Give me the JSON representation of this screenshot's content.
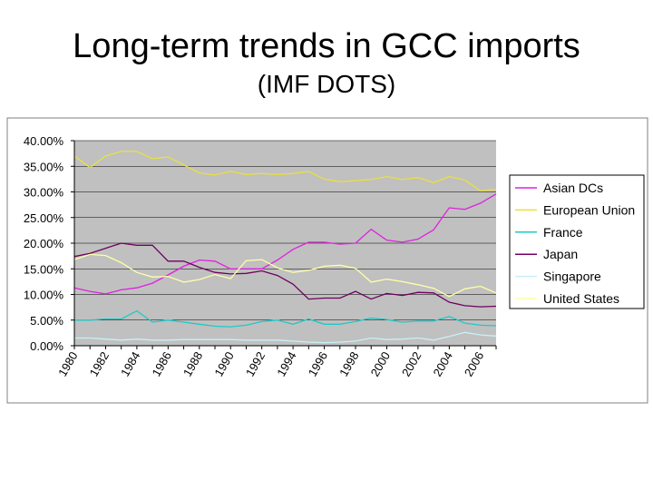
{
  "slide": {
    "title": "Long-term trends in GCC imports",
    "subtitle": "(IMF DOTS)"
  },
  "chart_data": {
    "type": "line",
    "title": "Long-term trends in GCC imports",
    "xlabel": "",
    "ylabel": "",
    "ylim": [
      0,
      0.4
    ],
    "y_ticks": [
      0,
      0.05,
      0.1,
      0.15,
      0.2,
      0.25,
      0.3,
      0.35,
      0.4
    ],
    "y_tick_labels": [
      "0.00%",
      "5.00%",
      "10.00%",
      "15.00%",
      "20.00%",
      "25.00%",
      "30.00%",
      "35.00%",
      "40.00%"
    ],
    "x": [
      1980,
      1981,
      1982,
      1983,
      1984,
      1985,
      1986,
      1987,
      1988,
      1989,
      1990,
      1991,
      1992,
      1993,
      1994,
      1995,
      1996,
      1997,
      1998,
      1999,
      2000,
      2001,
      2002,
      2003,
      2004,
      2005,
      2006,
      2007
    ],
    "x_tick_labels": [
      "1980",
      "1982",
      "1984",
      "1986",
      "1988",
      "1990",
      "1992",
      "1994",
      "1996",
      "1998",
      "2000",
      "2002",
      "2004",
      "2006"
    ],
    "x_tick_years": [
      1980,
      1982,
      1984,
      1986,
      1988,
      1990,
      1992,
      1994,
      1996,
      1998,
      2000,
      2002,
      2004,
      2006
    ],
    "plot_background": "#c0c0c0",
    "grid": true,
    "legend_position": "right",
    "series": [
      {
        "name": "Asian DCs",
        "color": "#e020e0",
        "values": [
          0.113,
          0.106,
          0.101,
          0.109,
          0.113,
          0.122,
          0.138,
          0.155,
          0.167,
          0.165,
          0.15,
          0.15,
          0.15,
          0.167,
          0.188,
          0.202,
          0.202,
          0.198,
          0.2,
          0.227,
          0.206,
          0.202,
          0.208,
          0.226,
          0.269,
          0.266,
          0.278,
          0.296
        ]
      },
      {
        "name": "European Union",
        "color": "#e8e040",
        "values": [
          0.37,
          0.348,
          0.37,
          0.379,
          0.379,
          0.365,
          0.368,
          0.353,
          0.337,
          0.333,
          0.34,
          0.334,
          0.336,
          0.334,
          0.336,
          0.34,
          0.325,
          0.32,
          0.322,
          0.324,
          0.33,
          0.324,
          0.328,
          0.318,
          0.33,
          0.323,
          0.302,
          0.305
        ]
      },
      {
        "name": "France",
        "color": "#20c8c8",
        "values": [
          0.05,
          0.05,
          0.052,
          0.052,
          0.068,
          0.046,
          0.05,
          0.046,
          0.042,
          0.038,
          0.037,
          0.04,
          0.047,
          0.05,
          0.042,
          0.052,
          0.042,
          0.042,
          0.047,
          0.054,
          0.051,
          0.046,
          0.048,
          0.048,
          0.057,
          0.044,
          0.04,
          0.039
        ]
      },
      {
        "name": "Japan",
        "color": "#700060",
        "values": [
          0.174,
          0.18,
          0.19,
          0.2,
          0.196,
          0.196,
          0.165,
          0.165,
          0.153,
          0.143,
          0.14,
          0.141,
          0.146,
          0.137,
          0.12,
          0.091,
          0.093,
          0.093,
          0.106,
          0.091,
          0.102,
          0.098,
          0.104,
          0.103,
          0.085,
          0.078,
          0.076,
          0.077
        ]
      },
      {
        "name": "Singapore",
        "color": "#c8f0f8",
        "values": [
          0.015,
          0.015,
          0.013,
          0.011,
          0.013,
          0.011,
          0.011,
          0.012,
          0.012,
          0.012,
          0.012,
          0.011,
          0.011,
          0.011,
          0.009,
          0.007,
          0.006,
          0.007,
          0.009,
          0.015,
          0.012,
          0.013,
          0.015,
          0.011,
          0.018,
          0.026,
          0.021,
          0.019
        ]
      },
      {
        "name": "United States",
        "color": "#ffffa8",
        "values": [
          0.168,
          0.178,
          0.176,
          0.162,
          0.143,
          0.134,
          0.135,
          0.124,
          0.129,
          0.139,
          0.131,
          0.166,
          0.168,
          0.152,
          0.143,
          0.147,
          0.155,
          0.157,
          0.151,
          0.124,
          0.13,
          0.125,
          0.119,
          0.112,
          0.096,
          0.111,
          0.116,
          0.103
        ]
      }
    ]
  }
}
